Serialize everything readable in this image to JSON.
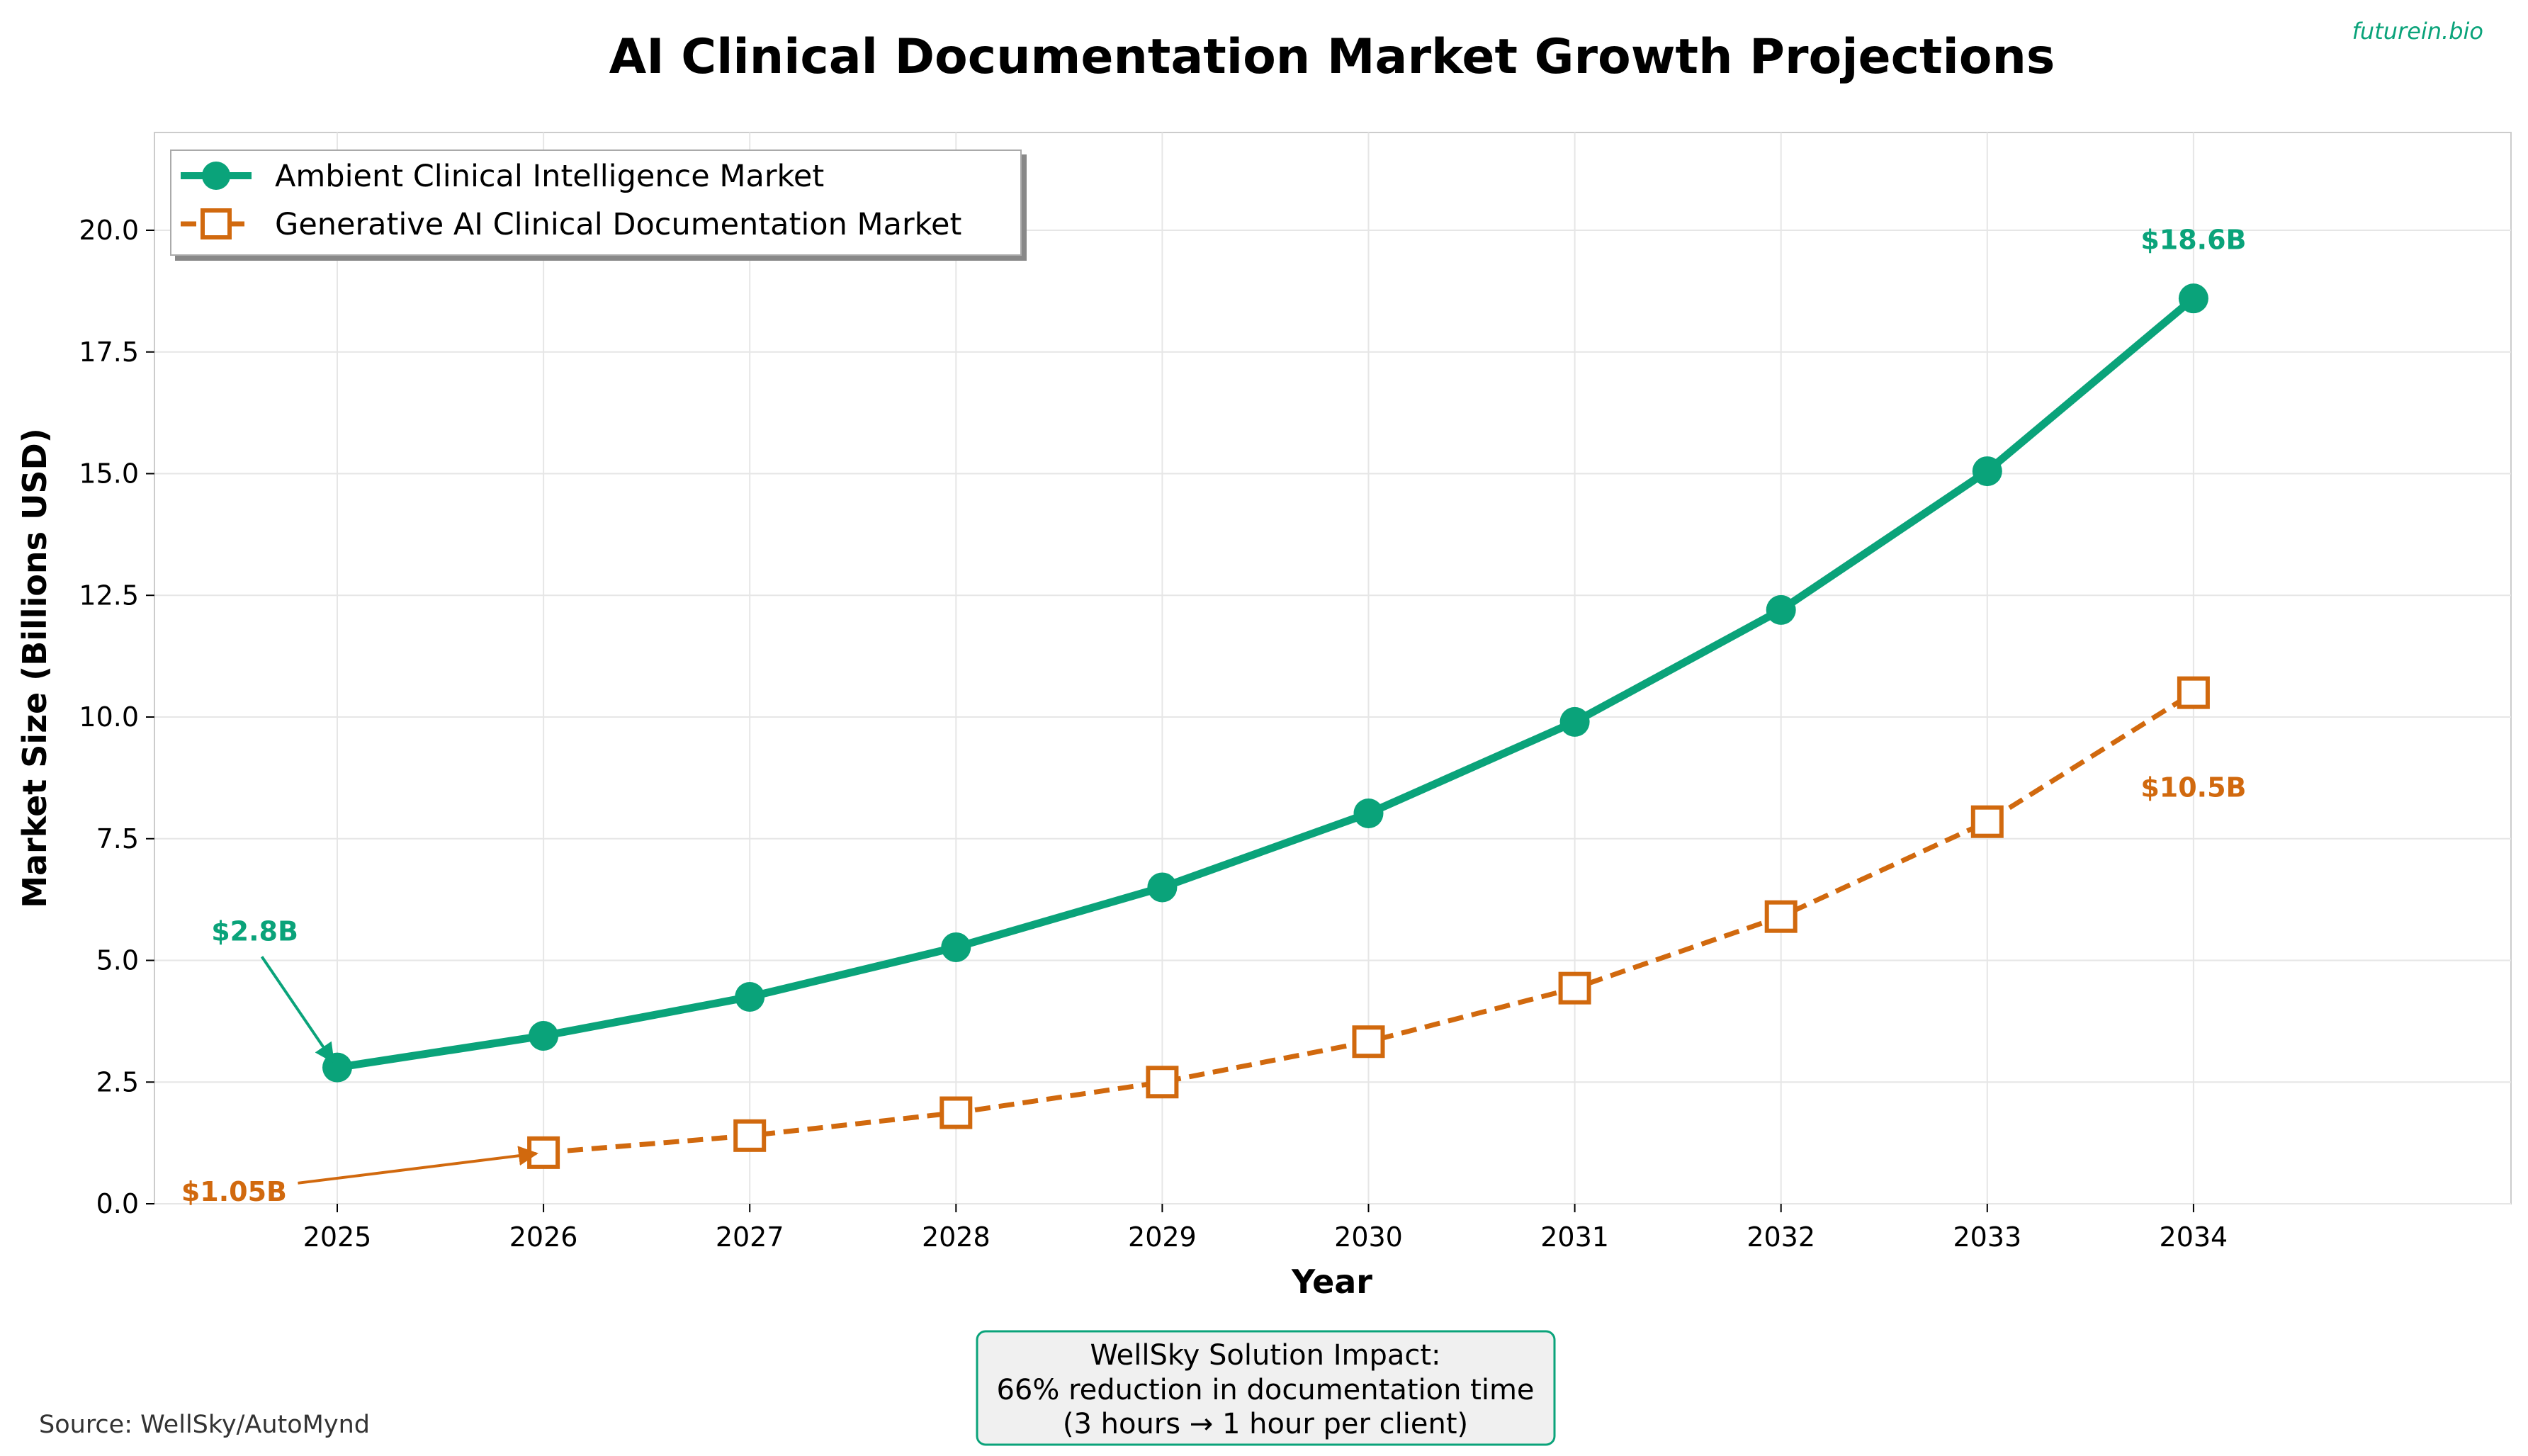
{
  "watermark": "futurein.bio",
  "source": "Source: WellSky/AutoMynd",
  "impact_box": {
    "lines": [
      "WellSky Solution Impact:",
      "66% reduction in documentation time",
      "(3 hours → 1 hour per client)"
    ],
    "border_color": "#0aa37a",
    "background": "#f0f0f0"
  },
  "chart_data": {
    "type": "line",
    "title": "AI Clinical Documentation Market Growth Projections",
    "xlabel": "Year",
    "ylabel": "Market Size (Billions USD)",
    "x": [
      2025,
      2026,
      2027,
      2028,
      2029,
      2030,
      2031,
      2032,
      2033,
      2034
    ],
    "xlim": [
      2024.2,
      2034.5
    ],
    "ylim": [
      0,
      22
    ],
    "yticks": [
      "0.0",
      "2.5",
      "5.0",
      "7.5",
      "10.0",
      "12.5",
      "15.0",
      "17.5",
      "20.0"
    ],
    "grid": true,
    "legend_position": "top-left",
    "series": [
      {
        "name": "Ambient Clinical Intelligence Market",
        "color": "#0aa37a",
        "style": "solid",
        "marker": "circle",
        "x": [
          2025,
          2026,
          2027,
          2028,
          2029,
          2030,
          2031,
          2032,
          2033,
          2034
        ],
        "values": [
          2.8,
          3.45,
          4.25,
          5.27,
          6.5,
          8.02,
          9.9,
          12.2,
          15.05,
          18.6
        ]
      },
      {
        "name": "Generative AI Clinical Documentation Market",
        "color": "#d1690e",
        "style": "dashed",
        "marker": "square",
        "x": [
          2026,
          2027,
          2028,
          2029,
          2030,
          2031,
          2032,
          2033,
          2034
        ],
        "values": [
          1.05,
          1.4,
          1.87,
          2.5,
          3.33,
          4.43,
          5.9,
          7.85,
          10.5
        ]
      }
    ],
    "annotations": [
      {
        "text": "$2.8B",
        "series": 0,
        "x": 2025,
        "y": 2.8,
        "label_x": 2024.6,
        "label_y": 5.6,
        "arrow": true
      },
      {
        "text": "$1.05B",
        "series": 1,
        "x": 2026,
        "y": 1.05,
        "label_x": 2024.5,
        "label_y": 0.25,
        "arrow": true
      },
      {
        "text": "$18.6B",
        "series": 0,
        "x": 2034,
        "y": 18.6,
        "label_x": 2034,
        "label_y": 19.8,
        "arrow": false
      },
      {
        "text": "$10.5B",
        "series": 1,
        "x": 2034,
        "y": 10.5,
        "label_x": 2034,
        "label_y": 8.55,
        "arrow": false
      }
    ]
  }
}
